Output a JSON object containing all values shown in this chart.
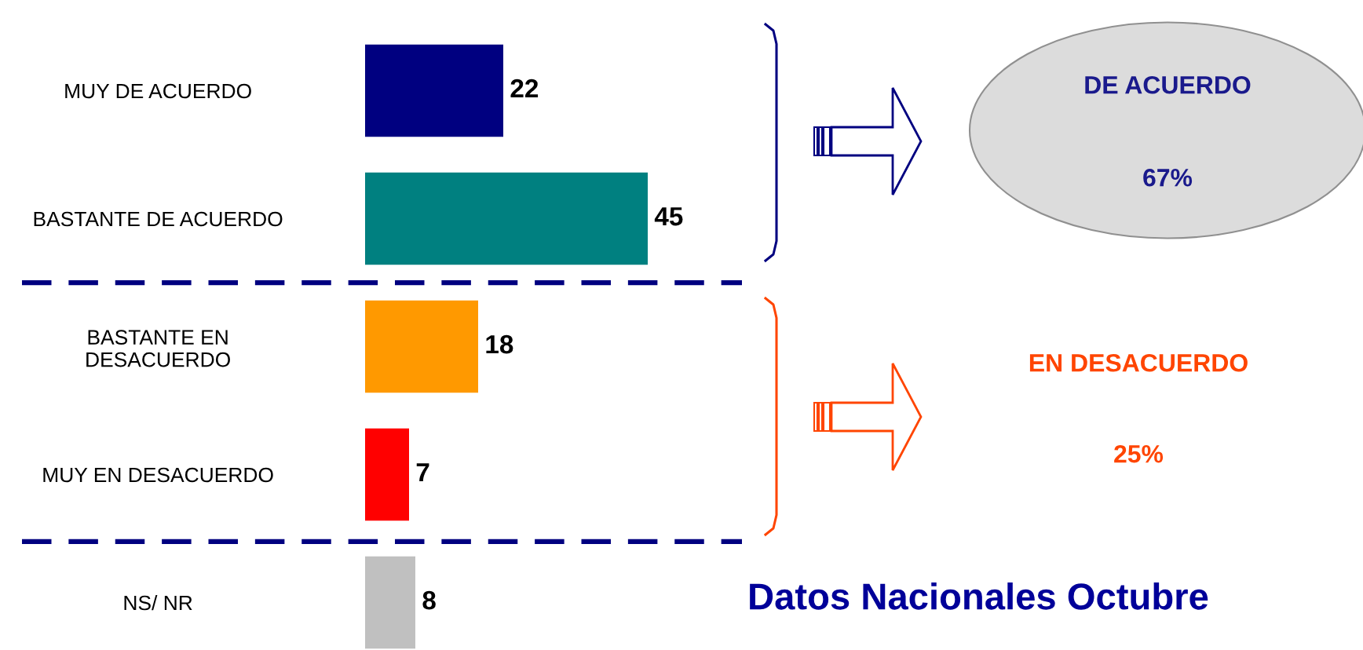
{
  "chart_data": {
    "type": "bar",
    "orientation": "horizontal",
    "categories": [
      "MUY DE ACUERDO",
      "BASTANTE DE ACUERDO",
      "BASTANTE EN\nDESACUERDO",
      "MUY EN DESACUERDO",
      "NS/ NR"
    ],
    "values": [
      22,
      45,
      18,
      7,
      8
    ],
    "colors": [
      "#000080",
      "#008080",
      "#ff9900",
      "#ff0000",
      "#c0c0c0"
    ],
    "data_labels": true,
    "tick_labels": "y",
    "grid": false,
    "legend": false,
    "annotations": [
      "DE ACUERDO",
      "67%",
      "EN DESACUERDO",
      "25%",
      "Datos Nacionales Octubre"
    ]
  }
}
